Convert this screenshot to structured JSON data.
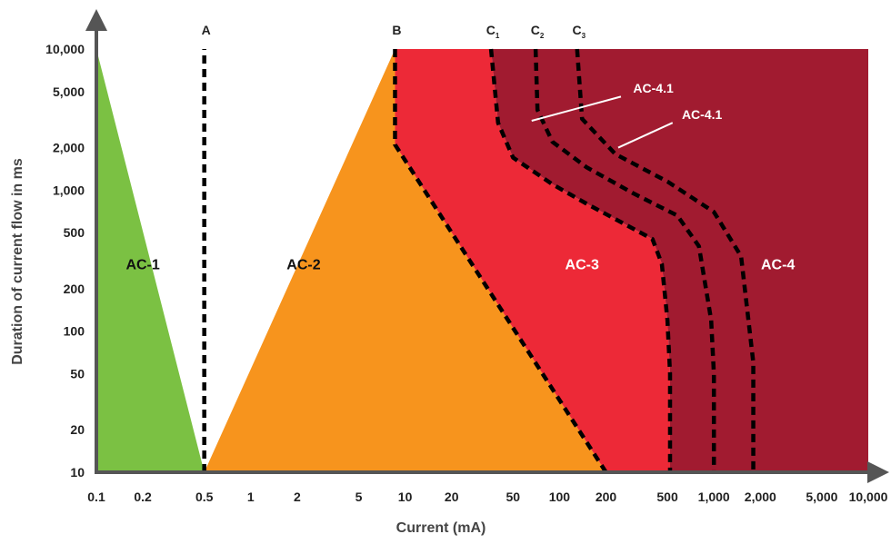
{
  "chart_data": {
    "type": "area",
    "xlabel": "Current (mA)",
    "ylabel": "Duration of current flow in ms",
    "x_scale": "log",
    "y_scale": "log",
    "xlim": [
      0.1,
      10000
    ],
    "ylim": [
      10,
      10000
    ],
    "x_ticks": [
      {
        "value": 0.1,
        "label": "0.1"
      },
      {
        "value": 0.2,
        "label": "0.2"
      },
      {
        "value": 0.5,
        "label": "0.5"
      },
      {
        "value": 1,
        "label": "1"
      },
      {
        "value": 2,
        "label": "2"
      },
      {
        "value": 5,
        "label": "5"
      },
      {
        "value": 10,
        "label": "10"
      },
      {
        "value": 20,
        "label": "20"
      },
      {
        "value": 50,
        "label": "50"
      },
      {
        "value": 100,
        "label": "100"
      },
      {
        "value": 200,
        "label": "200"
      },
      {
        "value": 500,
        "label": "500"
      },
      {
        "value": 1000,
        "label": "1,000"
      },
      {
        "value": 2000,
        "label": "2,000"
      },
      {
        "value": 5000,
        "label": "5,000"
      },
      {
        "value": 10000,
        "label": "10,000"
      }
    ],
    "y_ticks": [
      {
        "value": 10,
        "label": "10"
      },
      {
        "value": 20,
        "label": "20"
      },
      {
        "value": 50,
        "label": "50"
      },
      {
        "value": 100,
        "label": "100"
      },
      {
        "value": 200,
        "label": "200"
      },
      {
        "value": 500,
        "label": "500"
      },
      {
        "value": 1000,
        "label": "1,000"
      },
      {
        "value": 2000,
        "label": "2,000"
      },
      {
        "value": 5000,
        "label": "5,000"
      },
      {
        "value": 10000,
        "label": "10,000"
      }
    ],
    "curves": [
      {
        "label": "A",
        "sub": "",
        "points": [
          [
            0.5,
            10
          ],
          [
            0.5,
            10000
          ]
        ]
      },
      {
        "label": "B",
        "sub": "",
        "points": [
          [
            8.6,
            10000
          ],
          [
            8.6,
            2100
          ],
          [
            200,
            10
          ]
        ]
      },
      {
        "label": "C",
        "sub": "1",
        "points": [
          [
            36,
            10000
          ],
          [
            40,
            3000
          ],
          [
            50,
            1700
          ],
          [
            90,
            1100
          ],
          [
            150,
            800
          ],
          [
            400,
            450
          ],
          [
            460,
            300
          ],
          [
            500,
            120
          ],
          [
            520,
            50
          ],
          [
            520,
            10
          ]
        ]
      },
      {
        "label": "C",
        "sub": "2",
        "points": [
          [
            70,
            10000
          ],
          [
            72,
            3700
          ],
          [
            90,
            2200
          ],
          [
            150,
            1450
          ],
          [
            300,
            950
          ],
          [
            580,
            660
          ],
          [
            800,
            400
          ],
          [
            960,
            120
          ],
          [
            1000,
            50
          ],
          [
            1000,
            10
          ]
        ]
      },
      {
        "label": "C",
        "sub": "3",
        "points": [
          [
            130,
            10000
          ],
          [
            140,
            3200
          ],
          [
            230,
            1800
          ],
          [
            500,
            1150
          ],
          [
            1000,
            700
          ],
          [
            1500,
            340
          ],
          [
            1800,
            60
          ],
          [
            1800,
            10
          ]
        ]
      }
    ],
    "zones": [
      {
        "label": "AC-1",
        "color": "#7bc143",
        "label_at": [
          0.2,
          300
        ]
      },
      {
        "label": "AC-2",
        "color": "#f7941d",
        "label_at": [
          2.2,
          300
        ]
      },
      {
        "label": "AC-3",
        "color": "#ed2937",
        "label_at": [
          140,
          300
        ],
        "text_color": "#ffffff"
      },
      {
        "label": "AC-4",
        "color": "#a11b30",
        "label_at": [
          2600,
          300
        ],
        "text_color": "#ffffff"
      }
    ],
    "annotations": [
      {
        "text": "AC-4.1",
        "text_at": [
          300,
          4900
        ],
        "line_from": [
          250,
          4600
        ],
        "line_to": [
          66,
          3100
        ]
      },
      {
        "text": "AC-4.1",
        "text_at": [
          620,
          3200
        ],
        "line_from": [
          540,
          3000
        ],
        "line_to": [
          240,
          2000
        ]
      }
    ]
  }
}
